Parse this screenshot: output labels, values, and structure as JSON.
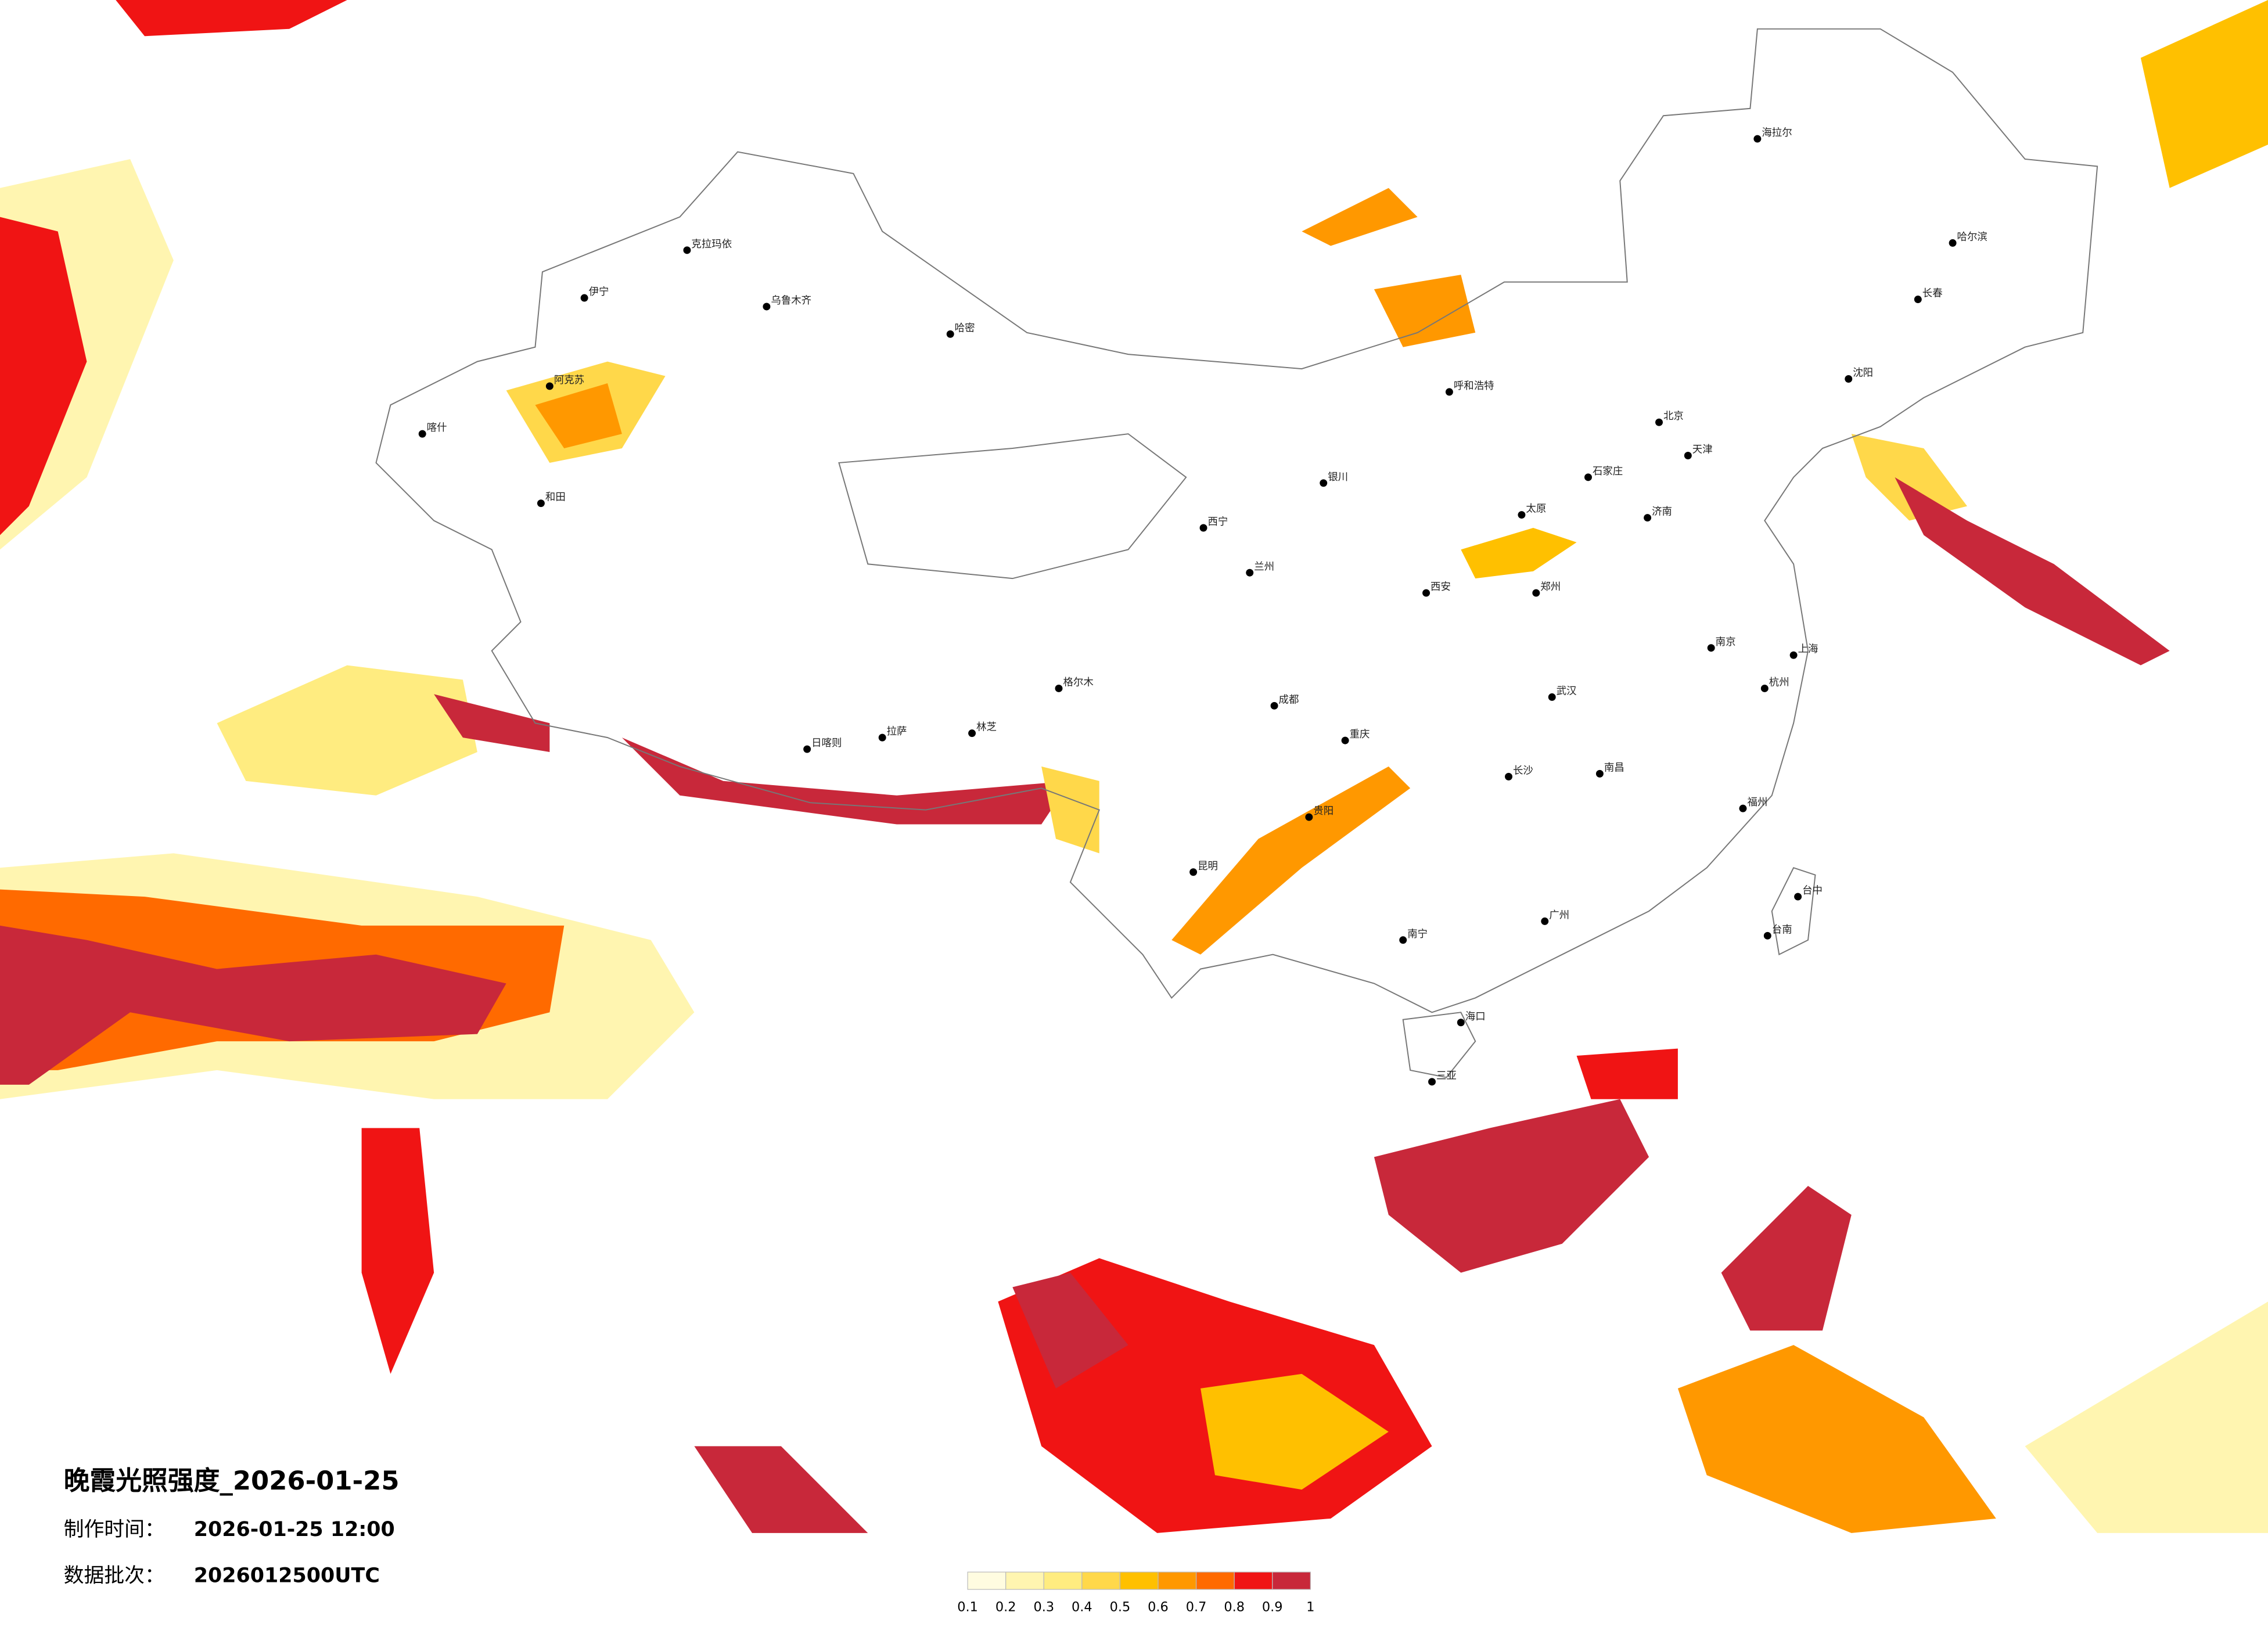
{
  "title": "晚霞光照强度_2026-01-25",
  "production_time": {
    "label": "制作时间：",
    "value": "2026-01-25 12:00"
  },
  "batch": {
    "label": "数据批次：",
    "value": "2026012500UTC"
  },
  "colorbar": {
    "ticks": [
      0.1,
      0.2,
      0.3,
      0.4,
      0.5,
      0.6,
      0.7,
      0.8,
      0.9,
      1
    ],
    "colors": [
      "#fffce0",
      "#fff5b0",
      "#ffec80",
      "#ffd84a",
      "#ffc000",
      "#ff9800",
      "#ff6a00",
      "#f01414",
      "#c8283a"
    ]
  },
  "cities": [
    "克拉玛依",
    "乌鲁木齐",
    "伊宁",
    "阿克苏",
    "喀什",
    "和田",
    "哈密",
    "拉萨",
    "日喀则",
    "林芝",
    "格尔木",
    "西宁",
    "兰州",
    "银川",
    "呼和浩特",
    "北京",
    "天津",
    "石家庄",
    "太原",
    "西安",
    "成都",
    "重庆",
    "贵阳",
    "昆明",
    "南宁",
    "广州",
    "长沙",
    "武汉",
    "南昌",
    "福州",
    "杭州",
    "上海",
    "南京",
    "济南",
    "郑州",
    "沈阳",
    "长春",
    "哈尔滨",
    "海拉尔",
    "台中",
    "台南",
    "海口",
    "三亚"
  ]
}
